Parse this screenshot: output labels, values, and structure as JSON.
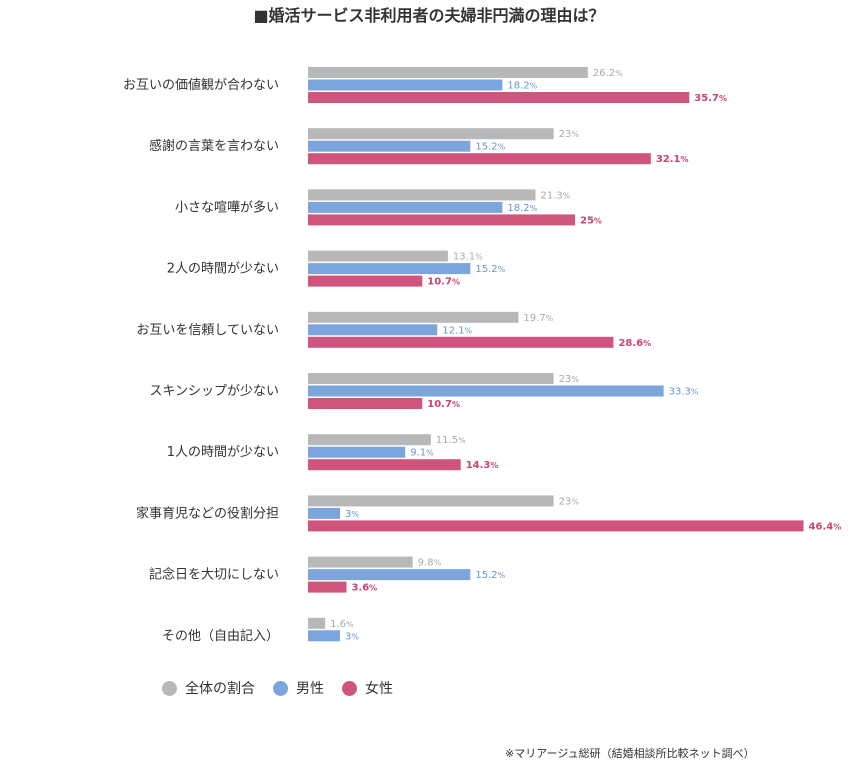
{
  "title": "■婚活サービス非利用者の夫婦非円満の理由は？",
  "source_note": "※マリアージュ総研（結婚相談所比較ネット調べ）",
  "unit": "%",
  "chart_data": {
    "type": "bar",
    "orientation": "horizontal",
    "title": "■婚活サービス非利用者の夫婦非円満の理由は？",
    "categories": [
      "お互いの価値観が合わない",
      "感謝の言葉を言わない",
      "小さな喧嘩が多い",
      "2人の時間が少ない",
      "お互いを信頼していない",
      "スキンシップが少ない",
      "1人の時間が少ない",
      "家事育児などの役割分担",
      "記念日を大切にしない",
      "その他（自由記入）"
    ],
    "series": [
      {
        "name": "全体の割合",
        "color": "#b8b8b8",
        "label_color": "#aaaaaa",
        "values": [
          26.2,
          23,
          21.3,
          13.1,
          19.7,
          23,
          11.5,
          23,
          9.8,
          1.6
        ]
      },
      {
        "name": "男性",
        "color": "#7ba5dc",
        "label_color": "#6b95cc",
        "values": [
          18.2,
          15.2,
          18.2,
          15.2,
          12.1,
          33.3,
          9.1,
          3,
          15.2,
          3
        ]
      },
      {
        "name": "女性",
        "color": "#d0557d",
        "label_color": "#c8456f",
        "values": [
          35.7,
          32.1,
          25,
          10.7,
          28.6,
          10.7,
          14.3,
          46.4,
          3.6,
          null
        ]
      }
    ],
    "xlim": [
      0,
      50
    ],
    "grid": false,
    "legend_position": "bottom-left"
  }
}
